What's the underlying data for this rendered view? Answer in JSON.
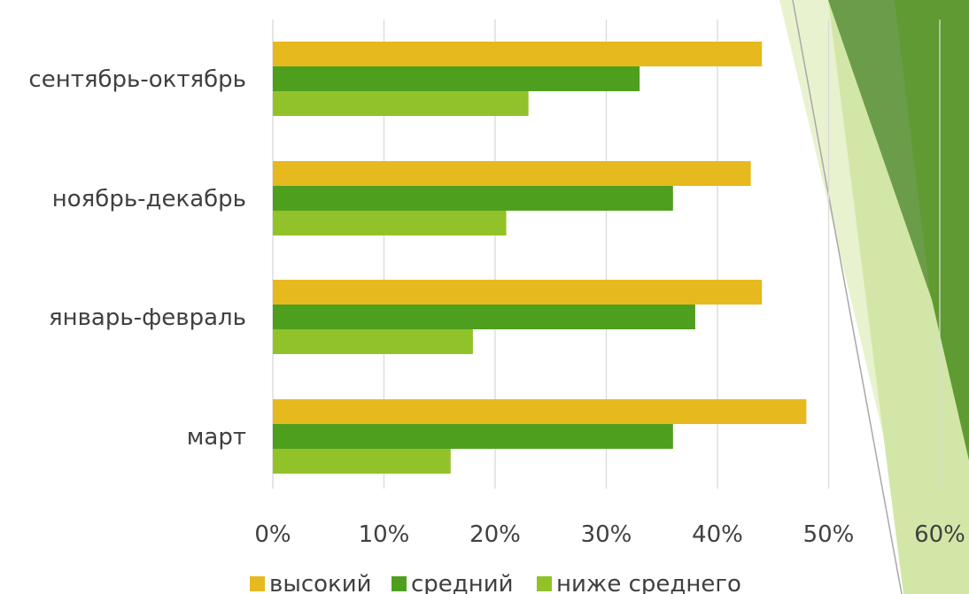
{
  "chart_data": {
    "type": "bar",
    "orientation": "horizontal",
    "categories": [
      "сентябрь-октябрь",
      "ноябрь-декабрь",
      "январь-февраль",
      "март"
    ],
    "series": [
      {
        "name": "высокий",
        "color": "#e6b91e",
        "values": [
          44,
          43,
          44,
          48
        ]
      },
      {
        "name": "средний",
        "color": "#4f9f1e",
        "values": [
          33,
          36,
          38,
          36
        ]
      },
      {
        "name": "ниже среднего",
        "color": "#92c22a",
        "values": [
          23,
          21,
          18,
          16
        ]
      }
    ],
    "x_ticks": [
      "0%",
      "10%",
      "20%",
      "30%",
      "40%",
      "50%",
      "60%"
    ],
    "xlim": [
      0,
      60
    ],
    "grid": true,
    "legend_position": "bottom"
  },
  "colors": {
    "grid": "#d9d9d9",
    "text": "#404040",
    "deco_dark": "#5a9a35",
    "deco_mid": "#6d9c48",
    "deco_light": "#d2e6a8",
    "deco_pale": "#e4f0c8"
  }
}
